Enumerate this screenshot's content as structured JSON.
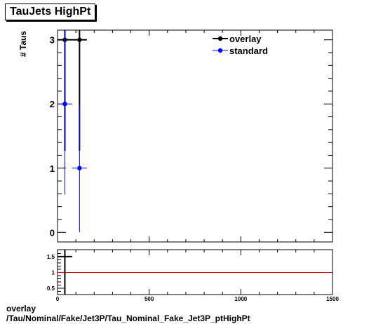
{
  "title": "TauJets HighPt",
  "chart_data": [
    {
      "type": "scatter",
      "ylabel": "# Taus",
      "xlim": [
        0,
        1500
      ],
      "ylim": [
        -0.15,
        3.15
      ],
      "yticks": [
        0,
        1,
        2,
        3
      ],
      "legend_position": "top-right",
      "series": [
        {
          "name": "overlay",
          "color": "#000000",
          "points": [
            {
              "x": 40,
              "y": 3,
              "xerr": 40,
              "yerr": 1.73
            },
            {
              "x": 120,
              "y": 3,
              "xerr": 40,
              "yerr": 1.73
            }
          ]
        },
        {
          "name": "standard",
          "color": "#0000ff",
          "points": [
            {
              "x": 40,
              "y": 2,
              "xerr": 40,
              "yerr": 1.41
            },
            {
              "x": 120,
              "y": 1,
              "xerr": 40,
              "yerr": 1.0
            }
          ]
        }
      ]
    },
    {
      "type": "scatter",
      "xlim": [
        0,
        1500
      ],
      "ylim": [
        0.3,
        1.72
      ],
      "yticks": [
        "0.5",
        "1",
        "1.5"
      ],
      "xticks": [
        "0",
        "500",
        "1000",
        "1500"
      ],
      "reference_line": {
        "y": 1,
        "color": "#cc0000"
      },
      "series": [
        {
          "name": "overlay",
          "color": "#000000",
          "points": [
            {
              "x": 40,
              "y": 1.5,
              "xerr": 40,
              "yerr": 1.2
            }
          ]
        }
      ]
    }
  ],
  "footer": {
    "line1": "overlay",
    "line2": "/Tau/Nominal/Fake/Jet3P/Tau_Nominal_Fake_Jet3P_ptHighPt"
  }
}
